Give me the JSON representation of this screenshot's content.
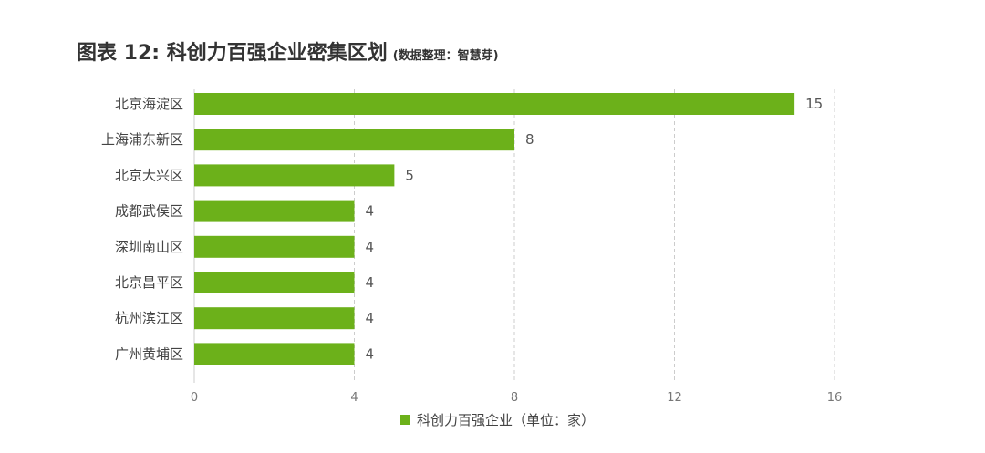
{
  "title": "图表 12: 科创力百强企业密集区划",
  "title_note": "(数据整理：智慧芽)",
  "colors": {
    "bar": "#6cb11a",
    "grid": "#cccccc",
    "text": "#333333"
  },
  "chart_data": {
    "type": "bar",
    "orientation": "horizontal",
    "title": "图表 12: 科创力百强企业密集区划",
    "categories": [
      "北京海淀区",
      "上海浦东新区",
      "北京大兴区",
      "成都武侯区",
      "深圳南山区",
      "北京昌平区",
      "杭州滨江区",
      "广州黄埔区"
    ],
    "series": [
      {
        "name": "科创力百强企业（单位：家）",
        "values": [
          15,
          8,
          5,
          4,
          4,
          4,
          4,
          4
        ]
      }
    ],
    "xlim": [
      0,
      16
    ],
    "x_ticks": [
      0,
      4,
      8,
      12,
      16
    ],
    "grid": true,
    "legend_position": "bottom-center",
    "data_labels": true
  }
}
